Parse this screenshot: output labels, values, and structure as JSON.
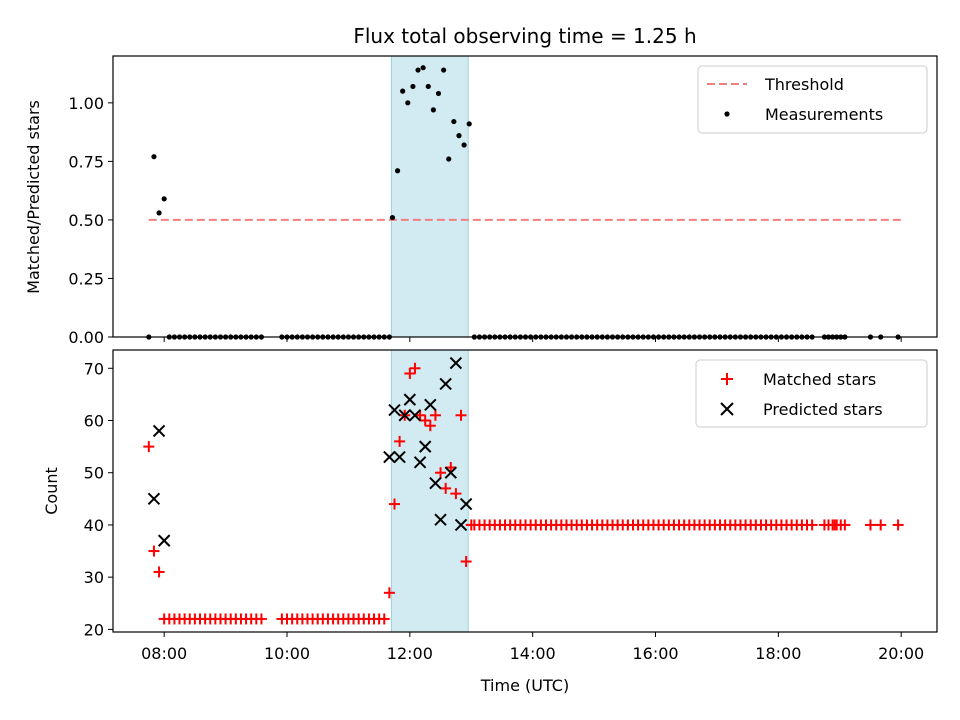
{
  "colors": {
    "threshold": "#f08080",
    "measurement": "#000000",
    "matched": "#ff0000",
    "predicted": "#000000",
    "span_fill": "#add8e6"
  },
  "chart_data": [
    {
      "type": "scatter",
      "title": "Flux total observing time = 1.25 h",
      "xlabel": "",
      "ylabel": "Matched/Predicted stars",
      "xlim": [
        "07:10",
        "20:35"
      ],
      "ylim": [
        0,
        1.2
      ],
      "x_ticks": [
        "08:00",
        "10:00",
        "12:00",
        "14:00",
        "16:00",
        "18:00",
        "20:00"
      ],
      "y_ticks": [
        "0.00",
        "0.25",
        "0.50",
        "0.75",
        "1.00"
      ],
      "shaded_span": [
        "11:42",
        "12:57"
      ],
      "threshold": {
        "name": "Threshold",
        "value": 0.5,
        "x_range": [
          "07:45",
          "20:00"
        ]
      },
      "series": [
        {
          "name": "Measurements",
          "points": [
            [
              "07:45",
              0.0
            ],
            [
              "07:50",
              0.77
            ],
            [
              "07:55",
              0.53
            ],
            [
              "08:00",
              0.59
            ],
            [
              "11:43",
              0.51
            ],
            [
              "11:48",
              0.71
            ],
            [
              "11:53",
              1.05
            ],
            [
              "11:58",
              1.0
            ],
            [
              "12:03",
              1.07
            ],
            [
              "12:08",
              1.14
            ],
            [
              "12:13",
              1.15
            ],
            [
              "12:18",
              1.07
            ],
            [
              "12:23",
              0.97
            ],
            [
              "12:28",
              1.04
            ],
            [
              "12:33",
              1.14
            ],
            [
              "12:38",
              0.76
            ],
            [
              "12:43",
              0.92
            ],
            [
              "12:48",
              0.86
            ],
            [
              "12:53",
              0.82
            ],
            [
              "12:58",
              0.91
            ],
            [
              "19:57",
              0.0
            ]
          ],
          "zero_runs": [
            {
              "from": "08:05",
              "to": "09:35",
              "step_min": 5
            },
            {
              "from": "09:55",
              "to": "11:40",
              "step_min": 5
            },
            {
              "from": "13:03",
              "to": "18:33",
              "step_min": 5
            },
            {
              "from": "18:45",
              "to": "19:05",
              "step_min": 4
            },
            {
              "from": "19:30",
              "to": "19:40",
              "step_min": 10
            }
          ]
        }
      ]
    },
    {
      "type": "scatter",
      "title": "",
      "xlabel": "Time (UTC)",
      "ylabel": "Count",
      "xlim": [
        "07:10",
        "20:35"
      ],
      "ylim": [
        19.5,
        73.5
      ],
      "x_ticks": [
        "08:00",
        "10:00",
        "12:00",
        "14:00",
        "16:00",
        "18:00",
        "20:00"
      ],
      "y_ticks": [
        "20",
        "30",
        "40",
        "50",
        "60",
        "70"
      ],
      "shaded_span": [
        "11:42",
        "12:57"
      ],
      "series": [
        {
          "name": "Matched stars",
          "marker": "plus",
          "points": [
            [
              "07:45",
              55
            ],
            [
              "07:50",
              35
            ],
            [
              "07:55",
              31
            ],
            [
              "08:00",
              22
            ],
            [
              "11:40",
              27
            ],
            [
              "11:45",
              44
            ],
            [
              "11:50",
              56
            ],
            [
              "11:55",
              61
            ],
            [
              "12:00",
              69
            ],
            [
              "12:05",
              70
            ],
            [
              "12:10",
              61
            ],
            [
              "12:15",
              60
            ],
            [
              "12:20",
              59
            ],
            [
              "12:25",
              61
            ],
            [
              "12:30",
              50
            ],
            [
              "12:35",
              47
            ],
            [
              "12:40",
              51
            ],
            [
              "12:45",
              46
            ],
            [
              "12:50",
              61
            ],
            [
              "12:55",
              33
            ],
            [
              "13:00",
              40
            ],
            [
              "18:55",
              40
            ],
            [
              "19:30",
              40
            ],
            [
              "19:40",
              40
            ],
            [
              "19:57",
              40
            ]
          ],
          "const_runs": [
            {
              "from": "08:05",
              "to": "09:35",
              "step_min": 5,
              "value": 22
            },
            {
              "from": "09:55",
              "to": "11:35",
              "step_min": 5,
              "value": 22
            },
            {
              "from": "13:03",
              "to": "18:33",
              "step_min": 5,
              "value": 40
            },
            {
              "from": "18:45",
              "to": "19:05",
              "step_min": 4,
              "value": 40
            }
          ]
        },
        {
          "name": "Predicted stars",
          "marker": "x",
          "points": [
            [
              "07:50",
              45
            ],
            [
              "07:55",
              58
            ],
            [
              "08:00",
              37
            ],
            [
              "11:40",
              53
            ],
            [
              "11:45",
              62
            ],
            [
              "11:50",
              53
            ],
            [
              "11:55",
              61
            ],
            [
              "12:00",
              64
            ],
            [
              "12:05",
              61
            ],
            [
              "12:10",
              52
            ],
            [
              "12:15",
              55
            ],
            [
              "12:20",
              63
            ],
            [
              "12:25",
              48
            ],
            [
              "12:30",
              41
            ],
            [
              "12:35",
              67
            ],
            [
              "12:40",
              50
            ],
            [
              "12:45",
              71
            ],
            [
              "12:50",
              40
            ],
            [
              "12:55",
              44
            ]
          ]
        }
      ]
    }
  ]
}
